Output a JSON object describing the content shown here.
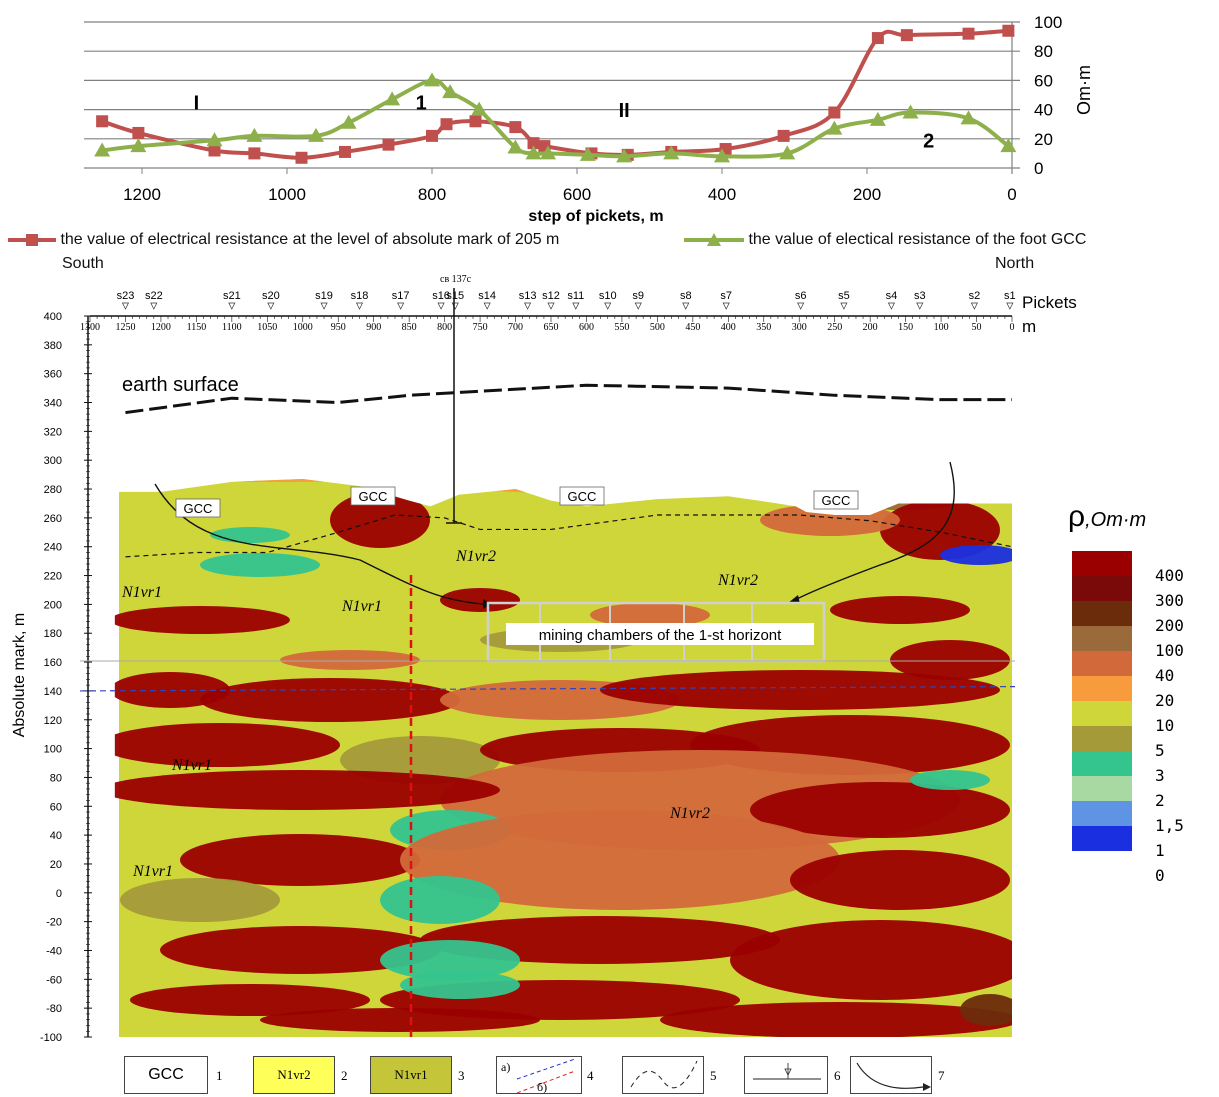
{
  "top_chart": {
    "type": "line",
    "title": "",
    "xlabel": "step of pickets, m",
    "ylabel": "Om·m",
    "xlim": [
      1280,
      0
    ],
    "ylim": [
      0,
      100
    ],
    "x_ticks": [
      "1200",
      "1000",
      "800",
      "600",
      "400",
      "200",
      "0"
    ],
    "y_ticks": [
      "0",
      "20",
      "40",
      "60",
      "80",
      "100"
    ],
    "zone_labels": [
      {
        "text": "I",
        "x": 1125,
        "y": 40
      },
      {
        "text": "1",
        "x": 815,
        "y": 40
      },
      {
        "text": "II",
        "x": 535,
        "y": 35
      },
      {
        "text": "2",
        "x": 115,
        "y": 14
      }
    ],
    "series": [
      {
        "name": "the value of electrical resistance at the level of absolute mark of 205 m",
        "color": "#c0504d",
        "marker": "square",
        "x": [
          1255,
          1205,
          1100,
          1045,
          980,
          920,
          860,
          800,
          780,
          740,
          685,
          660,
          645,
          580,
          530,
          470,
          395,
          315,
          245,
          185,
          145,
          60,
          5
        ],
        "y": [
          32,
          24,
          12,
          10,
          7,
          11,
          16,
          22,
          30,
          32,
          28,
          17,
          15,
          10,
          9,
          11,
          13,
          22,
          38,
          89,
          91,
          92,
          94
        ]
      },
      {
        "name": "the value of electical resistance of the foot GCC",
        "color": "#8db04a",
        "marker": "triangle",
        "x": [
          1255,
          1205,
          1100,
          1045,
          960,
          915,
          855,
          800,
          775,
          735,
          685,
          660,
          640,
          585,
          535,
          470,
          400,
          310,
          245,
          185,
          140,
          60,
          5
        ],
        "y": [
          12,
          15,
          19,
          22,
          22,
          31,
          47,
          60,
          52,
          40,
          14,
          10,
          10,
          9,
          8,
          10,
          8,
          10,
          27,
          33,
          38,
          34,
          15
        ]
      }
    ]
  },
  "legend": {
    "south": "South",
    "north": "North"
  },
  "section": {
    "ylabel": "Absolute mark, m",
    "ylim": [
      -100,
      400
    ],
    "y_ticks": [
      "400",
      "380",
      "360",
      "340",
      "320",
      "300",
      "280",
      "260",
      "240",
      "220",
      "200",
      "180",
      "160",
      "140",
      "120",
      "100",
      "80",
      "60",
      "40",
      "20",
      "0",
      "-20",
      "-40",
      "-60",
      "-80",
      "-100"
    ],
    "x_ticks": [
      "1300",
      "1250",
      "1200",
      "1150",
      "1100",
      "1050",
      "1000",
      "950",
      "900",
      "850",
      "800",
      "750",
      "700",
      "650",
      "600",
      "550",
      "500",
      "450",
      "400",
      "350",
      "300",
      "250",
      "200",
      "150",
      "100",
      "50",
      "0"
    ],
    "x_unit": "m",
    "pickets_label": "Pickets",
    "pickets": [
      {
        "name": "s23",
        "x": 1250
      },
      {
        "name": "s22",
        "x": 1210
      },
      {
        "name": "s21",
        "x": 1100
      },
      {
        "name": "s20",
        "x": 1045
      },
      {
        "name": "s19",
        "x": 970
      },
      {
        "name": "s18",
        "x": 920
      },
      {
        "name": "s17",
        "x": 862
      },
      {
        "name": "s16",
        "x": 805
      },
      {
        "name": "s15",
        "x": 785
      },
      {
        "name": "s14",
        "x": 740
      },
      {
        "name": "s13",
        "x": 683
      },
      {
        "name": "s12",
        "x": 650
      },
      {
        "name": "s11",
        "x": 615
      },
      {
        "name": "s10",
        "x": 570
      },
      {
        "name": "s9",
        "x": 527
      },
      {
        "name": "s8",
        "x": 460
      },
      {
        "name": "s7",
        "x": 403
      },
      {
        "name": "s6",
        "x": 298
      },
      {
        "name": "s5",
        "x": 237
      },
      {
        "name": "s4",
        "x": 170
      },
      {
        "name": "s3",
        "x": 130
      },
      {
        "name": "s2",
        "x": 53
      },
      {
        "name": "s1",
        "x": 3
      }
    ],
    "well_label": "св 137с",
    "earth_surface_label": "earth surface",
    "mining_label": "mining chambers of the 1-st horizont",
    "gcc_labels": [
      "GCC",
      "GCC",
      "GCC",
      "GCC"
    ],
    "n1vr2": "N1vr2",
    "n1vr1": "N1vr1"
  },
  "colorbar": {
    "symbol": "ρ",
    "unit": ",Om·m",
    "labels": [
      "400",
      "300",
      "200",
      "100",
      "40",
      "20",
      "10",
      "5",
      "3",
      "2",
      "1,5",
      "1",
      "0"
    ],
    "colors": [
      "#9a0000",
      "#7a0a0a",
      "#6b2c0c",
      "#9b6a3a",
      "#d2693a",
      "#f79b3c",
      "#cfd63a",
      "#a49a3a",
      "#34c48e",
      "#a9d9a2",
      "#5f93e3",
      "#1a2fe0"
    ]
  },
  "bottom_legend": {
    "items": [
      {
        "text": "GCC",
        "num": "1"
      },
      {
        "text": "N1vr2",
        "num": "2"
      },
      {
        "text": "N1vr1",
        "num": "3"
      },
      {
        "text": "а)",
        "text2": "б)",
        "num": "4"
      },
      {
        "text": "",
        "num": "5"
      },
      {
        "text": "",
        "num": "6"
      },
      {
        "text": "",
        "num": "7"
      }
    ]
  }
}
